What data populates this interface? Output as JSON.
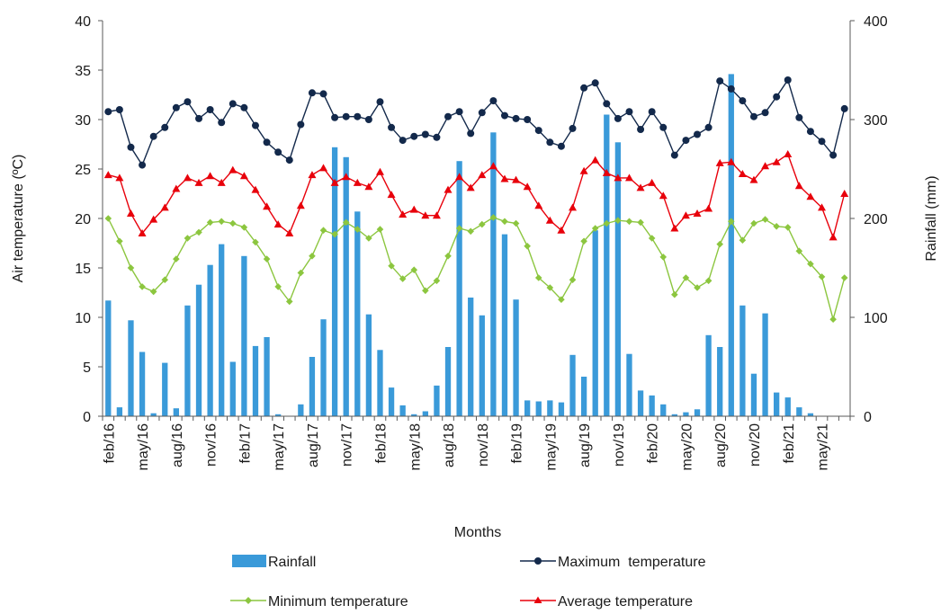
{
  "chart_data": {
    "type": "bar+line",
    "title": "",
    "xlabel": "Months",
    "ylabel_left": "Air temperature (ºC)",
    "ylabel_right": "Rainfall (mm)",
    "ylim_left": [
      0,
      40
    ],
    "ylim_right": [
      0,
      400
    ],
    "yticks_left": [
      "0",
      "5",
      "10",
      "15",
      "20",
      "25",
      "30",
      "35",
      "40"
    ],
    "yticks_right": [
      "0",
      "100",
      "200",
      "300",
      "400"
    ],
    "x": [
      "feb/16",
      "mar/16",
      "apr/16",
      "may/16",
      "jun/16",
      "jul/16",
      "aug/16",
      "sep/16",
      "oct/16",
      "nov/16",
      "dec/16",
      "jan/17",
      "feb/17",
      "mar/17",
      "apr/17",
      "may/17",
      "jun/17",
      "jul/17",
      "aug/17",
      "sep/17",
      "oct/17",
      "nov/17",
      "dec/17",
      "jan/18",
      "feb/18",
      "mar/18",
      "apr/18",
      "may/18",
      "jun/18",
      "jul/18",
      "aug/18",
      "sep/18",
      "oct/18",
      "nov/18",
      "dec/18",
      "jan/19",
      "feb/19",
      "mar/19",
      "apr/19",
      "may/19",
      "jun/19",
      "jul/19",
      "aug/19",
      "sep/19",
      "oct/19",
      "nov/19",
      "dec/19",
      "jan/20",
      "feb/20",
      "mar/20",
      "apr/20",
      "may/20",
      "jun/20",
      "jul/20",
      "aug/20",
      "sep/20",
      "oct/20",
      "nov/20",
      "dec/20",
      "jan/21",
      "feb/21",
      "mar/21",
      "apr/21",
      "may/21",
      "jun/21",
      "jul/21"
    ],
    "xtick_labels": [
      "feb/16",
      "may/16",
      "aug/16",
      "nov/16",
      "feb/17",
      "may/17",
      "aug/17",
      "nov/17",
      "feb/18",
      "may/18",
      "aug/18",
      "nov/18",
      "feb/19",
      "may/19",
      "aug/19",
      "nov/19",
      "feb/20",
      "may/20",
      "aug/20",
      "nov/20",
      "feb/21",
      "may/21"
    ],
    "series": [
      {
        "name": "Rainfall",
        "kind": "bar",
        "axis": "right",
        "color": "#3a9ad9",
        "values": [
          117,
          9,
          97,
          65,
          3,
          54,
          8,
          112,
          133,
          153,
          174,
          55,
          162,
          71,
          80,
          2,
          0,
          12,
          60,
          98,
          272,
          262,
          207,
          103,
          67,
          29,
          11,
          2,
          5,
          31,
          70,
          258,
          120,
          102,
          287,
          184,
          118,
          16,
          15,
          16,
          14,
          62,
          40,
          188,
          305,
          277,
          63,
          26,
          21,
          12,
          2,
          4,
          7,
          82,
          70,
          346,
          112,
          43,
          104,
          24,
          19,
          9,
          3,
          0,
          0,
          0
        ]
      },
      {
        "name": "Maximum  temperature",
        "kind": "line",
        "axis": "left",
        "color": "#13294b",
        "marker": "circle",
        "values": [
          30.8,
          31.0,
          27.2,
          25.4,
          28.3,
          29.2,
          31.2,
          31.8,
          30.1,
          31.0,
          29.7,
          31.6,
          31.2,
          29.4,
          27.7,
          26.7,
          25.9,
          29.5,
          32.7,
          32.6,
          30.2,
          30.3,
          30.3,
          30.0,
          31.8,
          29.2,
          27.9,
          28.3,
          28.5,
          28.2,
          30.3,
          30.8,
          28.6,
          30.7,
          31.9,
          30.4,
          30.1,
          30.0,
          28.9,
          27.7,
          27.3,
          29.1,
          33.2,
          33.7,
          31.6,
          30.1,
          30.8,
          29.0,
          30.8,
          29.2,
          26.4,
          27.9,
          28.5,
          29.2,
          33.9,
          33.1,
          31.9,
          30.3,
          30.7,
          32.3,
          34.0,
          30.2,
          28.8,
          27.8,
          26.4,
          31.1
        ]
      },
      {
        "name": "Minimum temperature",
        "kind": "line",
        "axis": "left",
        "color": "#8cc63f",
        "marker": "diamond",
        "values": [
          20.0,
          17.7,
          15.0,
          13.1,
          12.6,
          13.8,
          15.9,
          18.0,
          18.6,
          19.6,
          19.7,
          19.5,
          19.1,
          17.6,
          15.9,
          13.1,
          11.6,
          14.5,
          16.2,
          18.8,
          18.4,
          19.6,
          18.9,
          18.0,
          18.9,
          15.2,
          13.9,
          14.8,
          12.7,
          13.7,
          16.2,
          19.0,
          18.7,
          19.4,
          20.1,
          19.7,
          19.5,
          17.2,
          14.0,
          13.0,
          11.8,
          13.8,
          17.7,
          19.0,
          19.5,
          19.8,
          19.7,
          19.6,
          18.0,
          16.1,
          12.3,
          14.0,
          13.0,
          13.7,
          17.4,
          19.7,
          17.8,
          19.5,
          19.9,
          19.2,
          19.1,
          16.7,
          15.4,
          14.1,
          9.8,
          14.0
        ]
      },
      {
        "name": "Average temperature",
        "kind": "line",
        "axis": "left",
        "color": "#e8000b",
        "marker": "triangle",
        "values": [
          24.4,
          24.1,
          20.5,
          18.5,
          19.9,
          21.1,
          23.0,
          24.1,
          23.6,
          24.3,
          23.6,
          24.9,
          24.3,
          22.9,
          21.2,
          19.4,
          18.5,
          21.3,
          24.4,
          25.1,
          23.6,
          24.2,
          23.6,
          23.2,
          24.7,
          22.4,
          20.4,
          20.9,
          20.3,
          20.3,
          22.9,
          24.2,
          23.1,
          24.4,
          25.3,
          24.0,
          23.9,
          23.2,
          21.3,
          19.8,
          18.8,
          21.1,
          24.8,
          25.9,
          24.6,
          24.1,
          24.1,
          23.1,
          23.6,
          22.3,
          19.0,
          20.3,
          20.5,
          21.0,
          25.6,
          25.7,
          24.5,
          23.9,
          25.3,
          25.7,
          26.5,
          23.3,
          22.2,
          21.1,
          18.1,
          22.5
        ]
      }
    ],
    "legend": {
      "placement": "bottom",
      "items": [
        {
          "label": "Rainfall",
          "kind": "bar",
          "color": "#3a9ad9"
        },
        {
          "label": "Maximum  temperature",
          "kind": "line",
          "color": "#13294b",
          "marker": "circle"
        },
        {
          "label": "Minimum temperature",
          "kind": "line",
          "color": "#8cc63f",
          "marker": "diamond"
        },
        {
          "label": "Average temperature",
          "kind": "line",
          "color": "#e8000b",
          "marker": "triangle"
        }
      ]
    },
    "grid": false
  }
}
